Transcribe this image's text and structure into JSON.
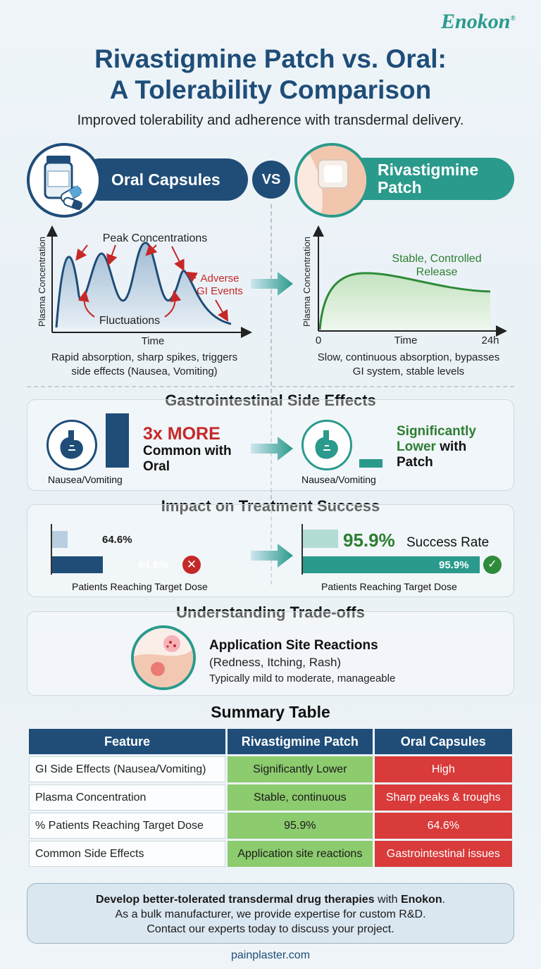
{
  "brand": "Enokon",
  "brand_mark": "®",
  "title_line1": "Rivastigmine Patch vs. Oral:",
  "title_line2": "A Tolerability Comparison",
  "subtitle": "Improved tolerability and adherence with transdermal delivery.",
  "oral_label": "Oral Capsules",
  "vs_label": "VS",
  "patch_label_line1": "Rivastigmine",
  "patch_label_line2": "Patch",
  "colors": {
    "navy": "#1f4d78",
    "teal": "#2a9a8c",
    "red": "#d93a3a",
    "green": "#8ccb6e"
  },
  "oral_chart": {
    "ylabel": "Plasma Concentration",
    "xlabel": "Time",
    "peaks_label": "Peak Concentrations",
    "adverse_line1": "Adverse",
    "adverse_line2": "GI Events",
    "fluct_label": "Fluctuations",
    "caption_line1": "Rapid absorption, sharp spikes, triggers",
    "caption_line2": "side effects (Nausea, Vomiting)"
  },
  "patch_chart": {
    "ylabel": "Plasma Concentration",
    "xlabel": "Time",
    "x_start": "0",
    "x_end": "24h",
    "stable_line1": "Stable, Controlled",
    "stable_line2": "Release",
    "caption_line1": "Slow, continuous absorption, bypasses",
    "caption_line2": "GI system, stable levels"
  },
  "gi": {
    "title": "Gastrointestinal Side Effects",
    "oral_bar_label": "Nausea/Vomiting",
    "oral_big": "3x MORE",
    "oral_text_line1": "Common with",
    "oral_text_line2": "Oral",
    "patch_bar_label": "Nausea/Vomiting",
    "patch_text_line1": "Significantly",
    "patch_text_line2a": "Lower",
    "patch_text_line2b": " with",
    "patch_text_line3": "Patch"
  },
  "impact": {
    "title": "Impact on Treatment Success",
    "oral_light_value": "64.6%",
    "oral_dark_value": "64.6%",
    "oral_fraction": 0.646,
    "oral_caption": "Patients Reaching Target Dose",
    "patch_big": "95.9%",
    "patch_big_suffix": "Success Rate",
    "patch_value": "95.9%",
    "patch_fraction": 0.959,
    "patch_caption": "Patients Reaching Target Dose"
  },
  "tradeoffs": {
    "title": "Understanding Trade-offs",
    "heading": "Application Site Reactions",
    "sub": "(Redness, Itching, Rash)",
    "desc": "Typically mild to moderate, manageable"
  },
  "table": {
    "title": "Summary Table",
    "headers": [
      "Feature",
      "Rivastigmine Patch",
      "Oral Capsules"
    ],
    "rows": [
      [
        "GI Side Effects (Nausea/Vomiting)",
        "Significantly Lower",
        "High"
      ],
      [
        "Plasma Concentration",
        "Stable, continuous",
        "Sharp peaks & troughs"
      ],
      [
        "% Patients Reaching Target Dose",
        "95.9%",
        "64.6%"
      ],
      [
        "Common Side Effects",
        "Application site reactions",
        "Gastrointestinal issues"
      ]
    ]
  },
  "cta": {
    "bold_part": "Develop better-tolerated transdermal drug therapies",
    "mid": " with ",
    "brand": "Enokon",
    "end": ".",
    "line2": "As a bulk manufacturer, we provide expertise for custom R&D.",
    "line3": "Contact our experts today to discuss your project."
  },
  "footer": "painplaster.com"
}
